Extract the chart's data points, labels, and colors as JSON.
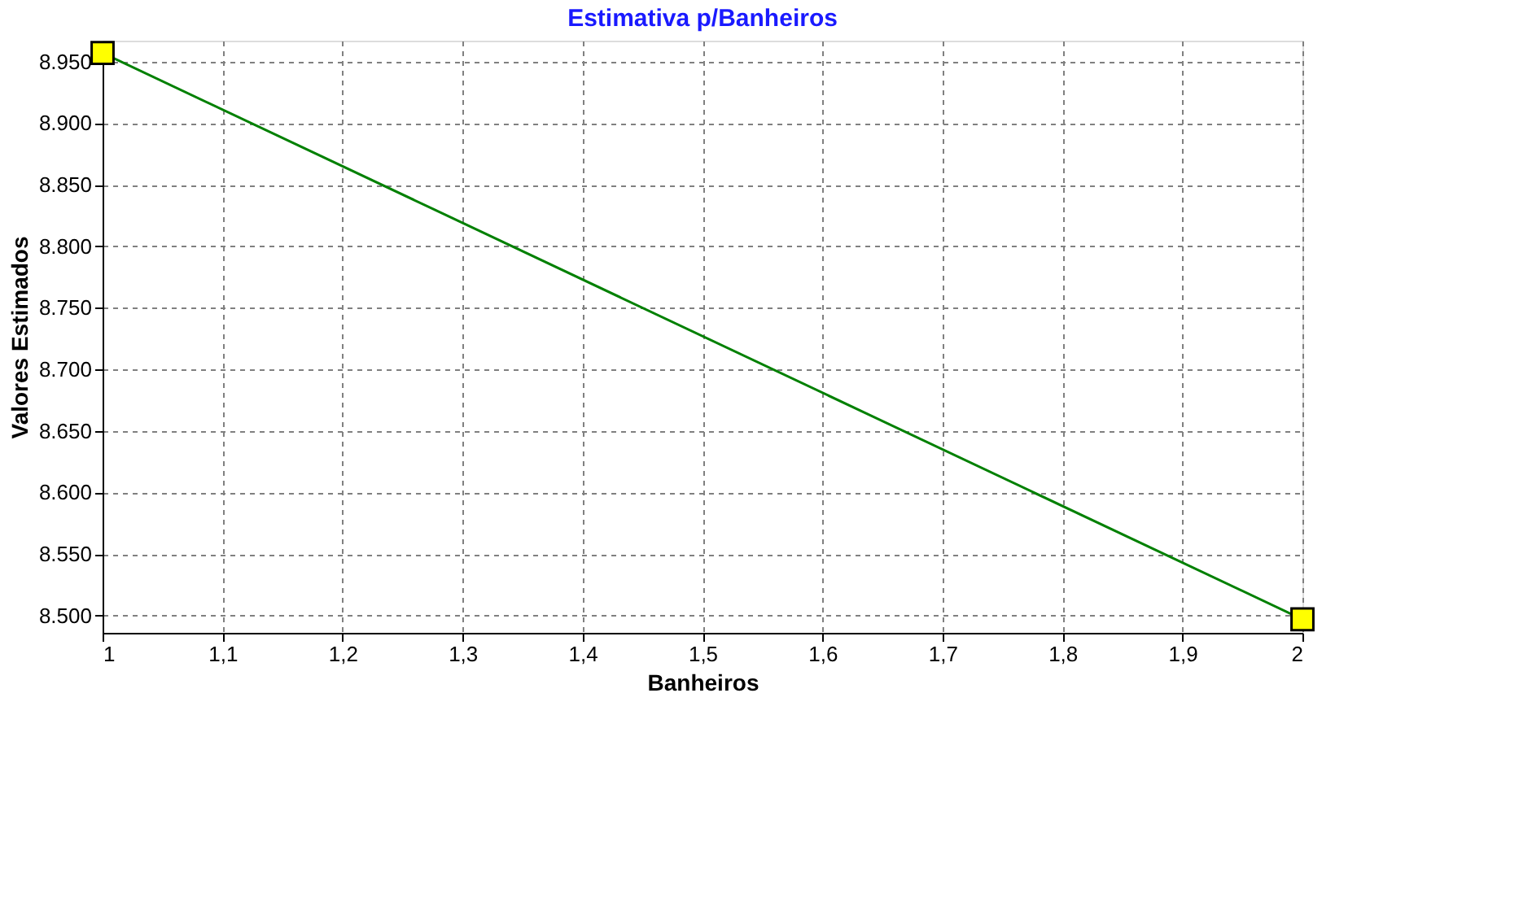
{
  "chart_data": {
    "type": "line",
    "title": "Estimativa p/Banheiros",
    "xlabel": "Banheiros",
    "ylabel": "Valores Estimados",
    "x": [
      1,
      2
    ],
    "series": [
      {
        "color": "#008000",
        "values": [
          8957,
          8497
        ]
      }
    ],
    "xlim": [
      1,
      2
    ],
    "xticks": [
      1,
      {
        "value": 1.1,
        "label": "1,1"
      },
      {
        "value": 1.2,
        "label": "1,2"
      },
      {
        "value": 1.3,
        "label": "1,3"
      },
      {
        "value": 1.4,
        "label": "1,4"
      },
      {
        "value": 1.5,
        "label": "1,5"
      },
      {
        "value": 1.6,
        "label": "1,6"
      },
      {
        "value": 1.7,
        "label": "1,7"
      },
      {
        "value": 1.8,
        "label": "1,8"
      },
      {
        "value": 1.9,
        "label": "1,9"
      },
      2
    ],
    "ylim": [
      8486,
      8967
    ],
    "yticks": [
      {
        "value": 8500,
        "label": "8.500"
      },
      {
        "value": 8550,
        "label": "8.550"
      },
      {
        "value": 8600,
        "label": "8.600"
      },
      {
        "value": 8650,
        "label": "8.650"
      },
      {
        "value": 8700,
        "label": "8.700"
      },
      {
        "value": 8750,
        "label": "8.750"
      },
      {
        "value": 8800,
        "label": "8.800"
      },
      {
        "value": 8850,
        "label": "8.850"
      },
      {
        "value": 8900,
        "label": "8.900"
      },
      {
        "value": 8950,
        "label": "8.950"
      }
    ],
    "grid": true,
    "marker": "square",
    "line_style": "solid"
  }
}
